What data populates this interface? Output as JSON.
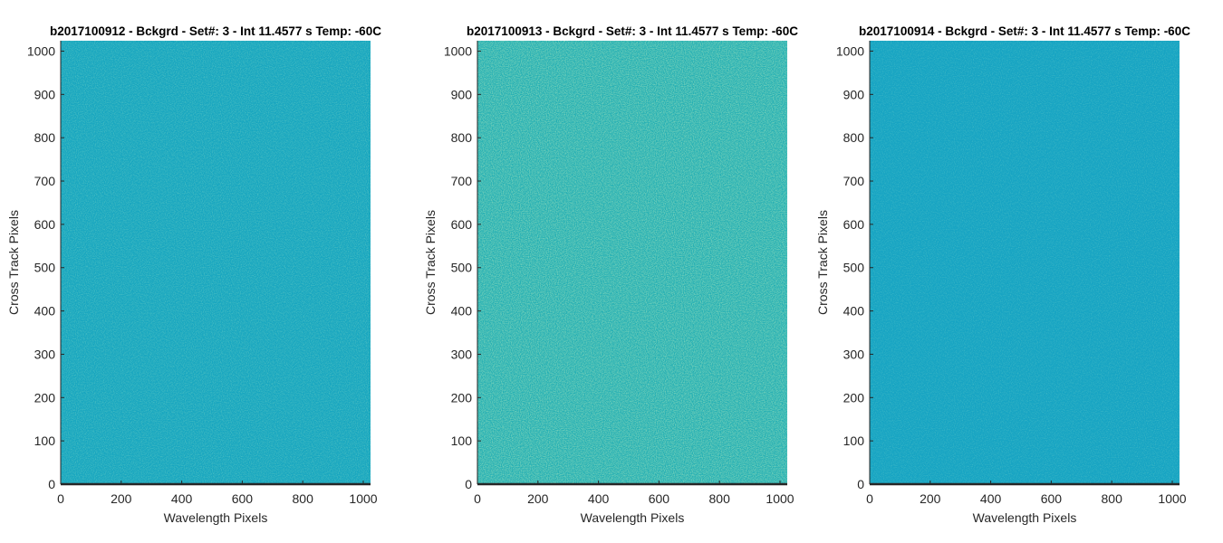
{
  "chart_data": [
    {
      "type": "heatmap",
      "title": "b2017100912 - Bckgrd - Set#: 3 - Int 11.4577 s Temp: -60C",
      "xlabel": "Wavelength Pixels",
      "ylabel": "Cross Track Pixels",
      "xlim": [
        0,
        1024
      ],
      "ylim": [
        0,
        1024
      ],
      "xticks": [
        0,
        200,
        400,
        600,
        800,
        1000
      ],
      "yticks": [
        0,
        100,
        200,
        300,
        400,
        500,
        600,
        700,
        800,
        900,
        1000
      ],
      "colormap": "parula",
      "base_color": "#18a6c0",
      "speckle_color": "#3fb98f",
      "noise_level": 0.35,
      "grid": false
    },
    {
      "type": "heatmap",
      "title": "b2017100913 - Bckgrd - Set#: 3 - Int 11.4577 s Temp: -60C",
      "xlabel": "Wavelength Pixels",
      "ylabel": "Cross Track Pixels",
      "xlim": [
        0,
        1024
      ],
      "ylim": [
        0,
        1024
      ],
      "xticks": [
        0,
        200,
        400,
        600,
        800,
        1000
      ],
      "yticks": [
        0,
        100,
        200,
        300,
        400,
        500,
        600,
        700,
        800,
        900,
        1000
      ],
      "colormap": "parula",
      "base_color": "#22ae b4",
      "speckle_color": "#55bf80",
      "noise_level": 0.55,
      "grid": false
    },
    {
      "type": "heatmap",
      "title": "b2017100914 - Bckgrd - Set#: 3 - Int 11.4577 s Temp: -60C",
      "xlabel": "Wavelength Pixels",
      "ylabel": "Cross Track Pixels",
      "xlim": [
        0,
        1024
      ],
      "ylim": [
        0,
        1024
      ],
      "xticks": [
        0,
        200,
        400,
        600,
        800,
        1000
      ],
      "yticks": [
        0,
        100,
        200,
        300,
        400,
        500,
        600,
        700,
        800,
        900,
        1000
      ],
      "colormap": "parula",
      "base_color": "#17a4c3",
      "speckle_color": "#3db796",
      "noise_level": 0.3,
      "grid": false
    }
  ]
}
